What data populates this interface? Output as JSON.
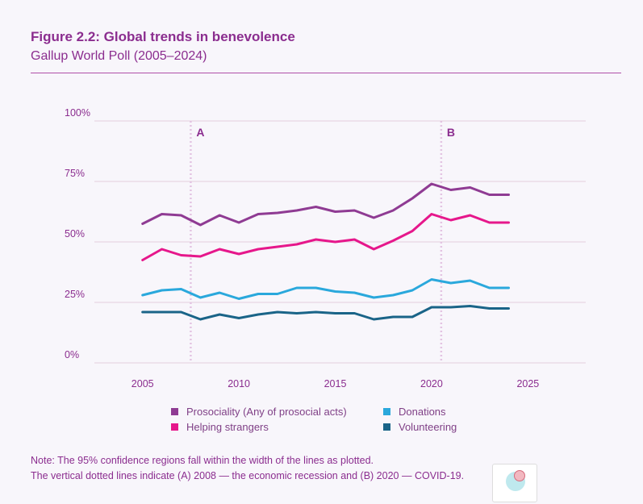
{
  "header": {
    "title": "Figure 2.2: Global trends in benevolence",
    "subtitle": "Gallup World Poll (2005–2024)"
  },
  "note": {
    "line1": "Note: The 95% confidence regions fall within the width of the lines as plotted.",
    "line2": "The vertical dotted lines indicate (A) 2008 — the economic recession and (B) 2020 — COVID-19."
  },
  "badge": {
    "icon": "app-badge-icon"
  },
  "colors": {
    "text": "#8b2d8f",
    "grid": "#eadbe8",
    "marker_line": "#e3c4e2"
  },
  "chart_data": {
    "type": "line",
    "title": "Figure 2.2: Global trends in benevolence",
    "subtitle": "Gallup World Poll (2005–2024)",
    "xlabel": "",
    "ylabel": "",
    "xlim": [
      2002.5,
      2028
    ],
    "ylim": [
      0,
      100
    ],
    "xticks": [
      2005,
      2010,
      2015,
      2020,
      2025
    ],
    "xtick_labels": [
      "2005",
      "2010",
      "2015",
      "2020",
      "2025"
    ],
    "yticks": [
      0,
      25,
      50,
      75,
      100
    ],
    "ytick_labels": [
      "0%",
      "25%",
      "50%",
      "75%",
      "100%"
    ],
    "grid": "horizontal",
    "annotations": [
      {
        "label": "A",
        "x": 2007.5
      },
      {
        "label": "B",
        "x": 2020.5
      }
    ],
    "x": [
      2005,
      2006,
      2007,
      2008,
      2009,
      2010,
      2011,
      2012,
      2013,
      2014,
      2015,
      2016,
      2017,
      2018,
      2019,
      2020,
      2021,
      2022,
      2023,
      2024
    ],
    "series": [
      {
        "name": "Prosociality (Any of prosocial acts)",
        "color": "#8f3b93",
        "values": [
          57.5,
          61.5,
          61,
          57,
          61,
          58,
          61.5,
          62,
          63,
          64.5,
          62.5,
          63,
          60,
          63,
          68,
          74,
          71.5,
          72.5,
          69.5,
          69.5
        ]
      },
      {
        "name": "Helping strangers",
        "color": "#e6178b",
        "values": [
          42.5,
          47,
          44.5,
          44,
          47,
          45,
          47,
          48,
          49,
          51,
          50,
          51,
          47,
          50.5,
          54.5,
          61.5,
          59,
          61,
          58,
          58
        ]
      },
      {
        "name": "Donations",
        "color": "#2aa8dc",
        "values": [
          28,
          30,
          30.5,
          27,
          29,
          26.5,
          28.5,
          28.5,
          31,
          31,
          29.5,
          29,
          27,
          28,
          30,
          34.5,
          33,
          34,
          31,
          31
        ]
      },
      {
        "name": "Volunteering",
        "color": "#1a6488",
        "values": [
          21,
          21,
          21,
          18,
          20,
          18.5,
          20,
          21,
          20.5,
          21,
          20.5,
          20.5,
          18,
          19,
          19,
          23,
          23,
          23.5,
          22.5,
          22.5
        ]
      }
    ]
  }
}
